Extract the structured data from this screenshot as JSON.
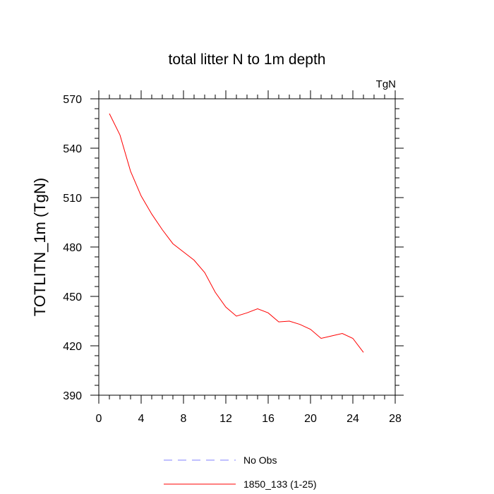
{
  "chart_data": {
    "type": "line",
    "title": "total litter N to 1m depth",
    "units_label": "TgN",
    "ylabel": "TOTLITN_1m  (TgN)",
    "xlabel": "",
    "xlim": [
      0,
      28
    ],
    "ylim": [
      390,
      570
    ],
    "xticks": [
      0,
      4,
      8,
      12,
      16,
      20,
      24,
      28
    ],
    "yticks": [
      390,
      420,
      450,
      480,
      510,
      540,
      570
    ],
    "x": [
      1,
      2,
      3,
      4,
      5,
      6,
      7,
      8,
      9,
      10,
      11,
      12,
      13,
      14,
      15,
      16,
      17,
      18,
      19,
      20,
      21,
      22,
      23,
      24,
      25
    ],
    "series": [
      {
        "name": "1850_133 (1-25)",
        "color": "#ff0000",
        "dash": "solid",
        "values": [
          561,
          548,
          526,
          511,
          500,
          490.5,
          482,
          477,
          472,
          464.5,
          452.5,
          443.5,
          438,
          440,
          442.5,
          440,
          434.5,
          435,
          433,
          430,
          424.5,
          426,
          427.5,
          424.5,
          416
        ]
      }
    ],
    "legend": [
      {
        "label": "No Obs",
        "color": "#8080ff",
        "dash": "dashed"
      },
      {
        "label": "1850_133 (1-25)",
        "color": "#ff0000",
        "dash": "solid"
      }
    ],
    "legend_position": "bottom-center"
  }
}
